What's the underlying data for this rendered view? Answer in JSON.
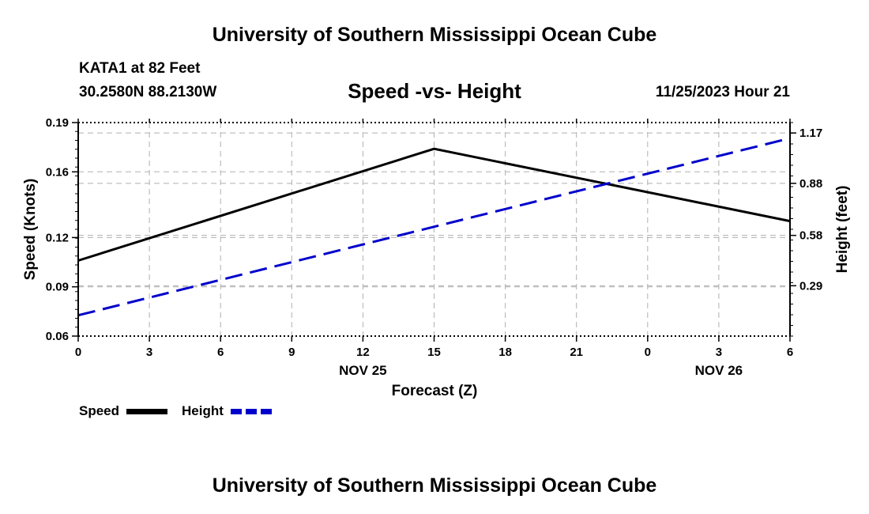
{
  "header": {
    "title": "University of Southern Mississippi Ocean Cube",
    "station": "KATA1 at 82 Feet",
    "coords": "30.2580N  88.2130W",
    "datetime": "11/25/2023 Hour 21"
  },
  "footer": {
    "title": "University of Southern Mississippi Ocean Cube"
  },
  "legend": {
    "speed_label": "Speed",
    "height_label": "Height"
  },
  "colors": {
    "speed": "#000000",
    "height": "#0000cc",
    "grid": "#b0b0b0"
  },
  "chart_data": {
    "type": "line",
    "title": "Speed -vs- Height",
    "xlabel": "Forecast (Z)",
    "ylabel": "Speed (Knots)",
    "y2label": "Height (feet)",
    "x_hours": [
      0,
      3,
      6,
      9,
      12,
      15,
      18,
      21,
      24,
      27,
      30
    ],
    "x_tick_labels": [
      "0",
      "3",
      "6",
      "9",
      "12",
      "15",
      "18",
      "21",
      "0",
      "3",
      "6"
    ],
    "date_labels": [
      {
        "text": "NOV 25",
        "at_hour": 12
      },
      {
        "text": "NOV 26",
        "at_hour": 27
      }
    ],
    "xlim": [
      0,
      30
    ],
    "ylim": [
      0.06,
      0.19
    ],
    "yticks": [
      0.06,
      0.09,
      0.12,
      0.16,
      0.19
    ],
    "ytick_labels": [
      "0.06",
      "0.09",
      "0.12",
      "0.16",
      "0.19"
    ],
    "y2lim": [
      0.0,
      1.23
    ],
    "y2ticks": [
      0.29,
      0.58,
      0.88,
      1.17
    ],
    "y2tick_labels": [
      "0.29",
      "0.58",
      "0.88",
      "1.17"
    ],
    "series": [
      {
        "name": "Speed",
        "axis": "left",
        "style": "solid",
        "x": [
          0,
          15,
          30
        ],
        "values": [
          0.106,
          0.174,
          0.13
        ]
      },
      {
        "name": "Height",
        "axis": "right",
        "style": "dashed",
        "x": [
          0,
          30
        ],
        "values": [
          0.12,
          1.14
        ]
      }
    ]
  }
}
